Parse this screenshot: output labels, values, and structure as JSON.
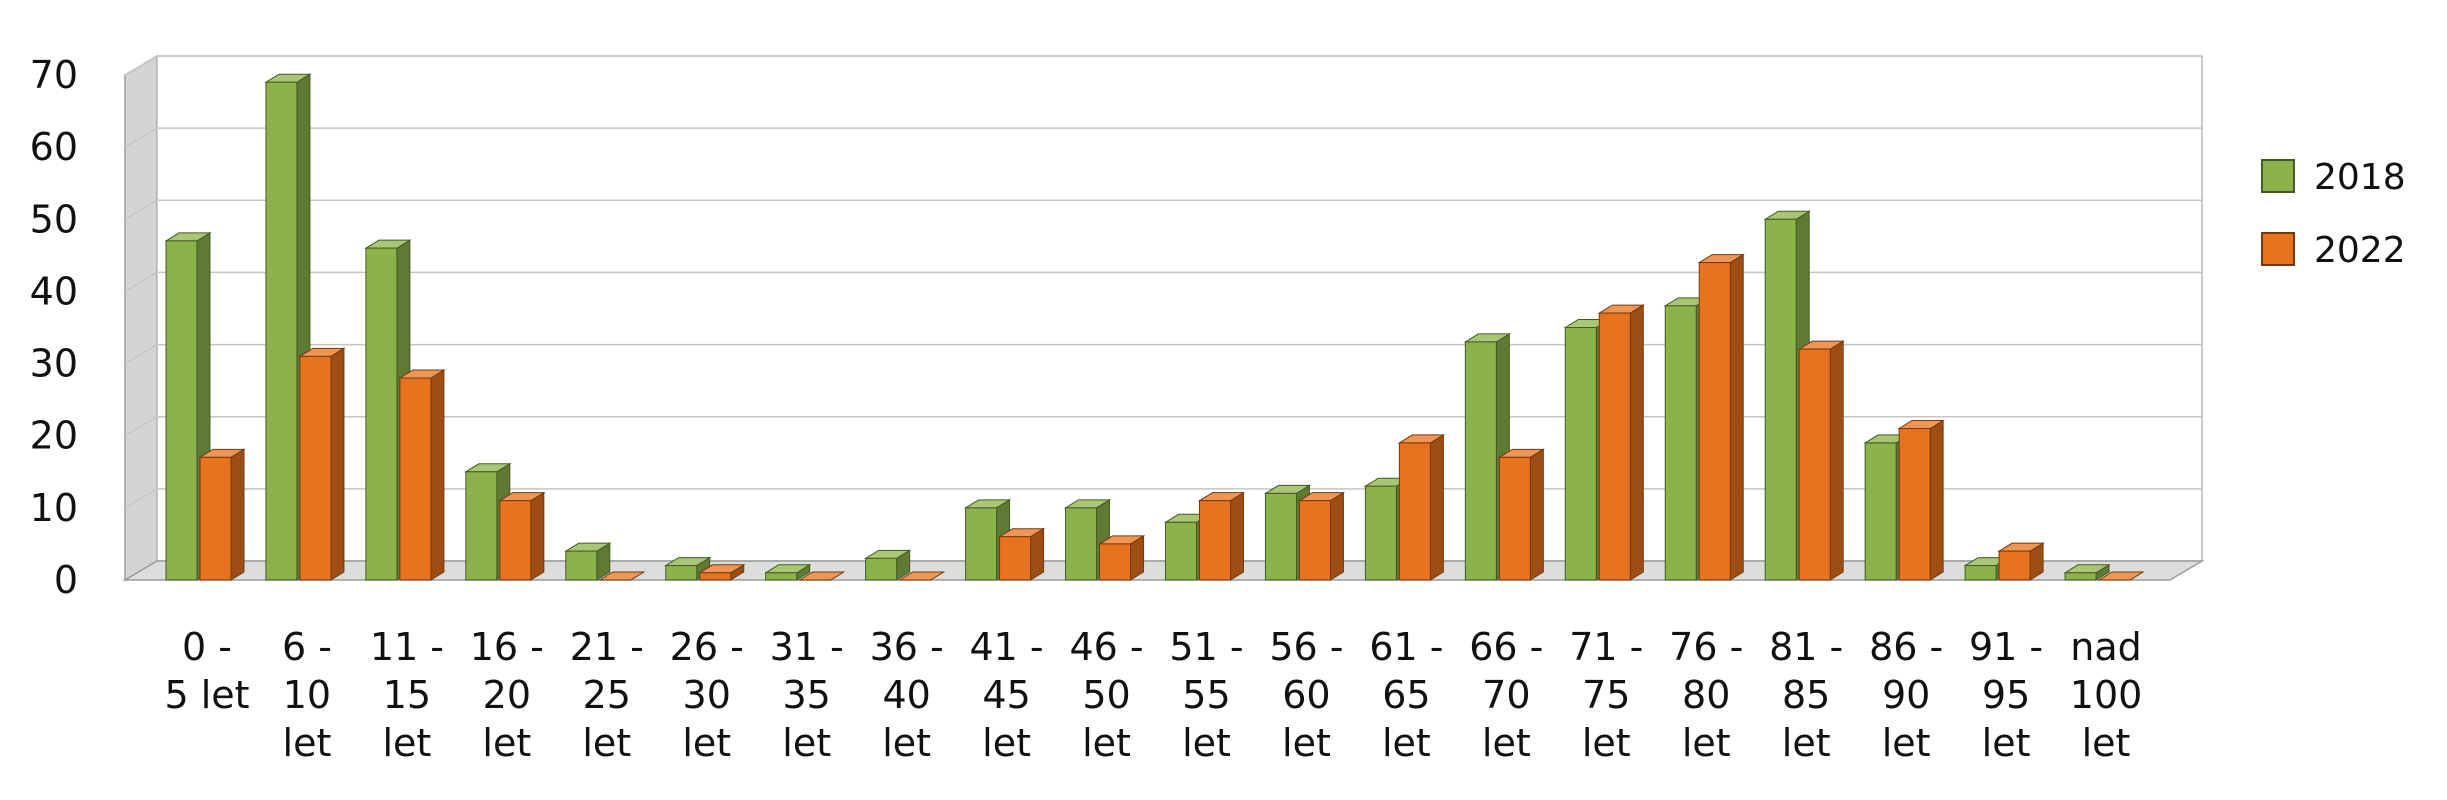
{
  "chart_data": {
    "type": "bar",
    "title": "",
    "xlabel": "",
    "ylabel": "",
    "ylim": [
      0,
      70
    ],
    "yticks": [
      "0",
      "10",
      "20",
      "30",
      "40",
      "50",
      "60",
      "70"
    ],
    "grid": true,
    "legend_position": "right",
    "categories": [
      [
        "0 -",
        "5 let"
      ],
      [
        "6 -",
        "10",
        "let"
      ],
      [
        "11 -",
        "15",
        "let"
      ],
      [
        "16 -",
        "20",
        "let"
      ],
      [
        "21 -",
        "25",
        "let"
      ],
      [
        "26 -",
        "30",
        "let"
      ],
      [
        "31 -",
        "35",
        "let"
      ],
      [
        "36 -",
        "40",
        "let"
      ],
      [
        "41 -",
        "45",
        "let"
      ],
      [
        "46 -",
        "50",
        "let"
      ],
      [
        "51 -",
        "55",
        "let"
      ],
      [
        "56 -",
        "60",
        "let"
      ],
      [
        "61 -",
        "65",
        "let"
      ],
      [
        "66 -",
        "70",
        "let"
      ],
      [
        "71 -",
        "75",
        "let"
      ],
      [
        "76 -",
        "80",
        "let"
      ],
      [
        "81 -",
        "85",
        "let"
      ],
      [
        "86 -",
        "90",
        "let"
      ],
      [
        "91 -",
        "95",
        "let"
      ],
      [
        "nad",
        "100",
        "let"
      ]
    ],
    "series": [
      {
        "name": "2018",
        "color": "#8cb34a",
        "values": [
          47,
          69,
          46,
          15,
          4,
          2,
          1,
          3,
          10,
          10,
          8,
          12,
          13,
          33,
          35,
          38,
          50,
          19,
          2,
          1
        ]
      },
      {
        "name": "2022",
        "color": "#e8731e",
        "values": [
          17,
          31,
          28,
          11,
          0,
          1,
          0,
          0,
          6,
          5,
          11,
          11,
          19,
          17,
          37,
          44,
          32,
          21,
          4,
          0
        ]
      }
    ]
  }
}
